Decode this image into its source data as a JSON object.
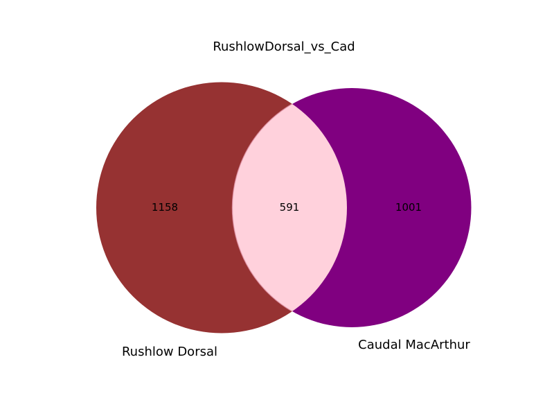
{
  "chart_data": {
    "type": "venn",
    "title": "RushlowDorsal_vs_Cad",
    "sets": [
      {
        "name": "Rushlow Dorsal",
        "only_count": "1158",
        "color": "#963232"
      },
      {
        "name": "Caudal MacArthur",
        "only_count": "1001",
        "color": "#800080"
      }
    ],
    "intersection": {
      "count": "591",
      "color": "#ffd1dc"
    }
  }
}
